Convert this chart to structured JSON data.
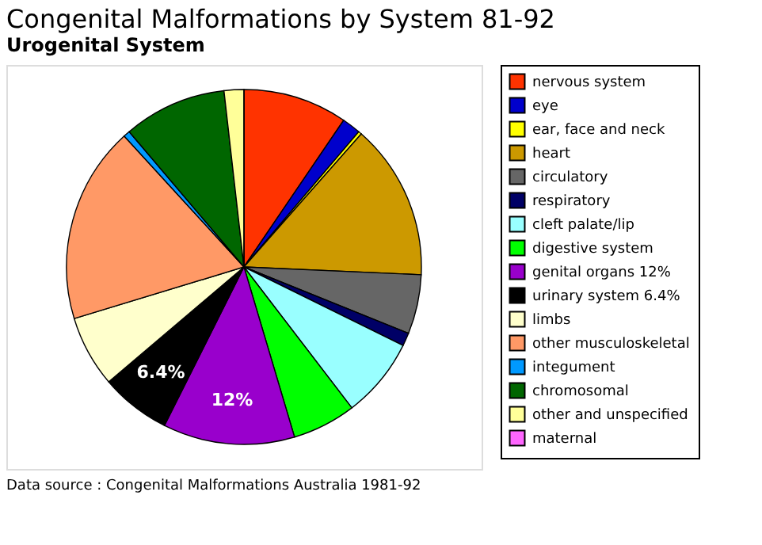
{
  "chart_data": {
    "type": "pie",
    "title": "Congenital Malformations by System 81-92",
    "subtitle": "Urogenital System",
    "categories": [
      "nervous system",
      "eye",
      "ear, face and neck",
      "heart",
      "circulatory",
      "respiratory",
      "cleft palate/lip",
      "digestive system",
      "genital organs  12%",
      "urinary system  6.4%",
      "limbs",
      "other musculoskeletal",
      "integument",
      "chromosomal",
      "other and unspecified",
      "maternal"
    ],
    "values": [
      9.5,
      1.7,
      0.3,
      14.2,
      5.4,
      1.2,
      7.3,
      5.8,
      12,
      6.4,
      6.5,
      17.9,
      0.6,
      9.4,
      1.8,
      0
    ],
    "colors": [
      "#ff3300",
      "#0000cc",
      "#ffff00",
      "#cc9900",
      "#666666",
      "#000066",
      "#99ffff",
      "#00ff00",
      "#9900cc",
      "#000000",
      "#ffffcc",
      "#ff9966",
      "#0099ff",
      "#006600",
      "#ffff99",
      "#ff66ff"
    ],
    "value_labels": [
      null,
      null,
      null,
      null,
      null,
      null,
      null,
      null,
      "12%",
      "6.4%",
      null,
      null,
      null,
      null,
      null,
      null
    ],
    "legend": "right",
    "annotations": [
      "Data source : Congenital Malformations Australia 1981-92"
    ]
  }
}
